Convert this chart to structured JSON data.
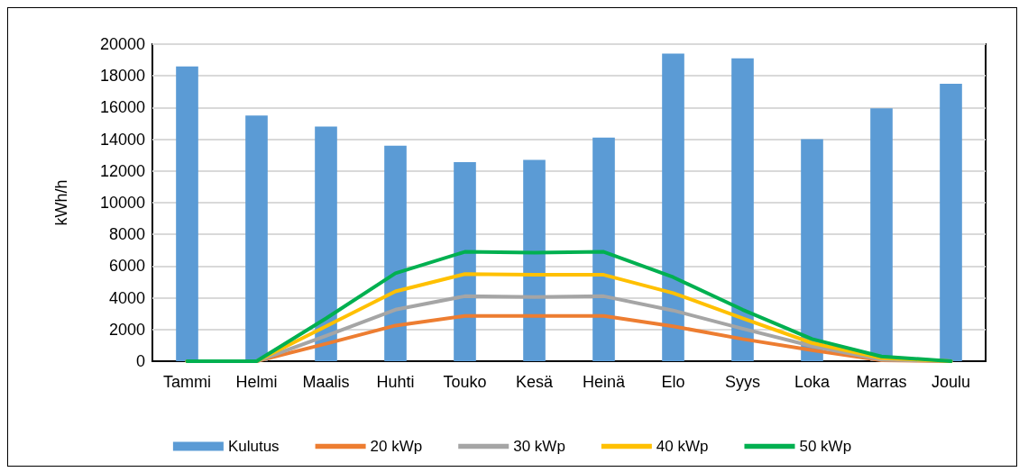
{
  "chart_data": {
    "type": "bar",
    "ylabel": "kWh/h",
    "categories": [
      "Tammi",
      "Helmi",
      "Maalis",
      "Huhti",
      "Touko",
      "Kesä",
      "Heinä",
      "Elo",
      "Syys",
      "Loka",
      "Marras",
      "Joulu"
    ],
    "series": [
      {
        "name": "Kulutus",
        "color": "#5b9bd5",
        "values": [
          18600,
          15500,
          14800,
          13600,
          12550,
          12700,
          14100,
          19400,
          19100,
          14000,
          15950,
          17500
        ]
      },
      {
        "name": "20 kWp",
        "type": "line",
        "color": "#ed7d31",
        "values": [
          0,
          0,
          1100,
          2250,
          2850,
          2850,
          2850,
          2200,
          1400,
          700,
          50,
          0
        ]
      },
      {
        "name": "30 kWp",
        "type": "line",
        "color": "#a5a5a5",
        "values": [
          0,
          0,
          1600,
          3250,
          4100,
          4050,
          4100,
          3200,
          2050,
          950,
          100,
          0
        ]
      },
      {
        "name": "40 kWp",
        "type": "line",
        "color": "#ffc000",
        "values": [
          0,
          0,
          2200,
          4400,
          5500,
          5450,
          5450,
          4300,
          2700,
          1150,
          200,
          0
        ]
      },
      {
        "name": "50 kWp",
        "type": "line",
        "color": "#00b050",
        "values": [
          0,
          0,
          2700,
          5550,
          6900,
          6850,
          6900,
          5300,
          3250,
          1400,
          300,
          0
        ]
      }
    ],
    "ylim": [
      0,
      20000
    ],
    "yticks": [
      0,
      2000,
      4000,
      6000,
      8000,
      10000,
      12000,
      14000,
      16000,
      18000,
      20000
    ],
    "grid": "y",
    "legend": "bottom",
    "marker": "none",
    "line_style": "solid"
  }
}
